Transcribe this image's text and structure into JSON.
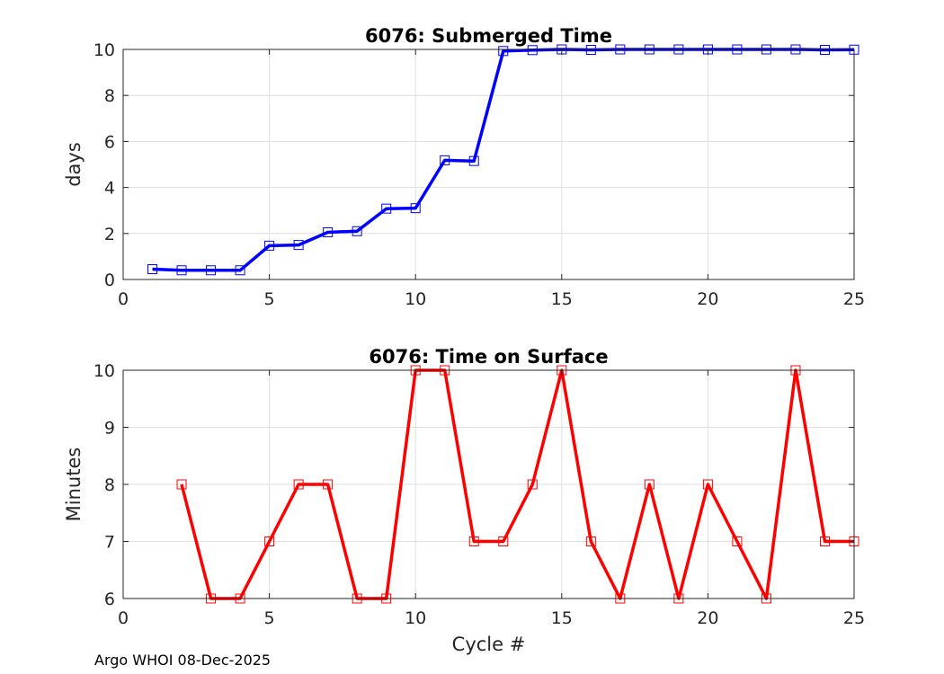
{
  "footer": "Argo WHOI 08-Dec-2025",
  "chart_data": [
    {
      "type": "line",
      "title": "6076: Submerged Time",
      "xlabel": "",
      "ylabel": "days",
      "xlim": [
        0,
        25
      ],
      "ylim": [
        0,
        10
      ],
      "xticks": [
        0,
        5,
        10,
        15,
        20,
        25
      ],
      "yticks": [
        0,
        2,
        4,
        6,
        8,
        10
      ],
      "grid": true,
      "series": [
        {
          "color": "#0000ff",
          "marker": "square",
          "x": [
            1,
            2,
            3,
            4,
            5,
            6,
            7,
            8,
            9,
            10,
            11,
            12,
            13,
            14,
            15,
            16,
            17,
            18,
            19,
            20,
            21,
            22,
            23,
            24,
            25
          ],
          "y": [
            0.45,
            0.4,
            0.4,
            0.4,
            1.47,
            1.5,
            2.05,
            2.1,
            3.08,
            3.1,
            5.18,
            5.15,
            9.93,
            9.97,
            10.0,
            9.98,
            10.0,
            10.0,
            10.0,
            10.0,
            10.0,
            10.0,
            10.0,
            9.98,
            9.99
          ]
        }
      ]
    },
    {
      "type": "line",
      "title": "6076: Time on Surface",
      "xlabel": "Cycle #",
      "ylabel": "Minutes",
      "xlim": [
        0,
        25
      ],
      "ylim": [
        6,
        10
      ],
      "xticks": [
        0,
        5,
        10,
        15,
        20,
        25
      ],
      "yticks": [
        6,
        7,
        8,
        9,
        10
      ],
      "grid": true,
      "series": [
        {
          "color": "#ff0000",
          "marker": "square",
          "x": [
            2,
            3,
            4,
            5,
            6,
            7,
            8,
            9,
            10,
            11,
            12,
            13,
            14,
            15,
            16,
            17,
            18,
            19,
            20,
            21,
            22,
            23,
            24,
            25
          ],
          "y": [
            8,
            6,
            6,
            7,
            8,
            8,
            6,
            6,
            10,
            10,
            7,
            7,
            8,
            10,
            7,
            6,
            8,
            6,
            8,
            7,
            6,
            10,
            7,
            7
          ]
        }
      ]
    }
  ]
}
